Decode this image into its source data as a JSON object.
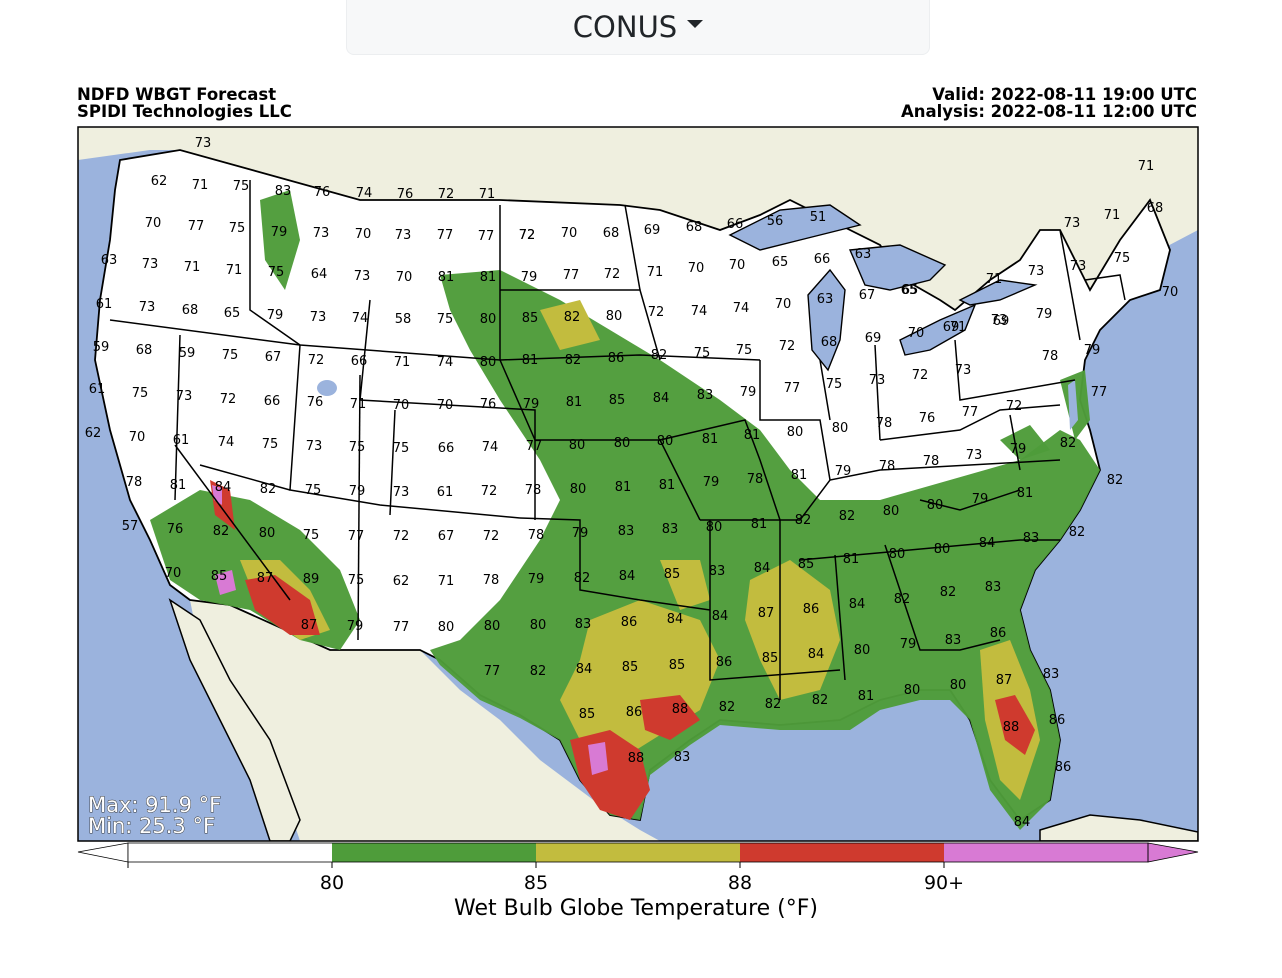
{
  "region_select": {
    "value": "CONUS"
  },
  "header": {
    "title": "NDFD WBGT Forecast",
    "org": "SPIDI Technologies LLC",
    "valid": "Valid: 2022-08-11 19:00 UTC",
    "analysis": "Analysis: 2022-08-11 12:00 UTC"
  },
  "stats": {
    "max": "Max: 91.9 °F",
    "min": "Min: 25.3 °F"
  },
  "colorbar": {
    "title": "Wet Bulb Globe Temperature (°F)",
    "ticks": [
      "80",
      "85",
      "88",
      "90+"
    ],
    "bins": [
      {
        "label": "<80",
        "color": "#ffffff"
      },
      {
        "label": "80-85",
        "color": "#4e9c3a"
      },
      {
        "label": "85-88",
        "color": "#c2bc3e"
      },
      {
        "label": "88-90",
        "color": "#cf3a2e"
      },
      {
        "label": "90+",
        "color": "#d87ad4"
      }
    ]
  },
  "colors": {
    "ocean": "#9bb3dd",
    "land_outside": "#efefdf",
    "border": "#000000"
  },
  "station_values": [
    "73",
    "62",
    "71",
    "75",
    "83",
    "76",
    "74",
    "76",
    "72",
    "71",
    "72",
    "66",
    "56",
    "51",
    "71",
    "68",
    "70",
    "77",
    "75",
    "79",
    "73",
    "70",
    "73",
    "77",
    "77",
    "72",
    "70",
    "68",
    "69",
    "68",
    "73",
    "71",
    "75",
    "73",
    "63",
    "73",
    "71",
    "71",
    "75",
    "64",
    "73",
    "70",
    "81",
    "81",
    "79",
    "77",
    "72",
    "71",
    "70",
    "70",
    "65",
    "66",
    "63",
    "65",
    "71",
    "73",
    "70",
    "61",
    "73",
    "68",
    "65",
    "79",
    "73",
    "74",
    "58",
    "75",
    "80",
    "85",
    "82",
    "80",
    "72",
    "74",
    "74",
    "70",
    "63",
    "67",
    "65",
    "69",
    "73",
    "79",
    "59",
    "68",
    "59",
    "75",
    "67",
    "72",
    "66",
    "71",
    "74",
    "80",
    "81",
    "82",
    "86",
    "82",
    "75",
    "75",
    "72",
    "68",
    "69",
    "70",
    "71",
    "69",
    "79",
    "61",
    "75",
    "73",
    "72",
    "66",
    "76",
    "71",
    "70",
    "70",
    "76",
    "79",
    "81",
    "85",
    "84",
    "83",
    "79",
    "77",
    "75",
    "73",
    "72",
    "73",
    "78",
    "77",
    "62",
    "70",
    "61",
    "74",
    "75",
    "73",
    "75",
    "75",
    "66",
    "74",
    "77",
    "80",
    "80",
    "80",
    "81",
    "81",
    "80",
    "80",
    "78",
    "76",
    "77",
    "72",
    "78",
    "81",
    "84",
    "82",
    "75",
    "79",
    "73",
    "61",
    "72",
    "78",
    "80",
    "81",
    "81",
    "79",
    "78",
    "81",
    "79",
    "78",
    "78",
    "73",
    "79",
    "82",
    "82",
    "57",
    "76",
    "82",
    "80",
    "75",
    "77",
    "72",
    "67",
    "72",
    "78",
    "79",
    "83",
    "83",
    "80",
    "81",
    "82",
    "82",
    "80",
    "80",
    "79",
    "81",
    "70",
    "85",
    "87",
    "89",
    "75",
    "62",
    "71",
    "78",
    "79",
    "82",
    "84",
    "85",
    "83",
    "84",
    "85",
    "81",
    "80",
    "80",
    "84",
    "83",
    "82",
    "87",
    "79",
    "77",
    "80",
    "80",
    "80",
    "83",
    "86",
    "84",
    "84",
    "87",
    "86",
    "84",
    "82",
    "82",
    "83",
    "77",
    "82",
    "84",
    "85",
    "85",
    "86",
    "85",
    "84",
    "80",
    "79",
    "83",
    "86",
    "85",
    "86",
    "88",
    "82",
    "82",
    "82",
    "81",
    "80",
    "80",
    "87",
    "83",
    "88",
    "83",
    "88",
    "86",
    "86",
    "84"
  ]
}
